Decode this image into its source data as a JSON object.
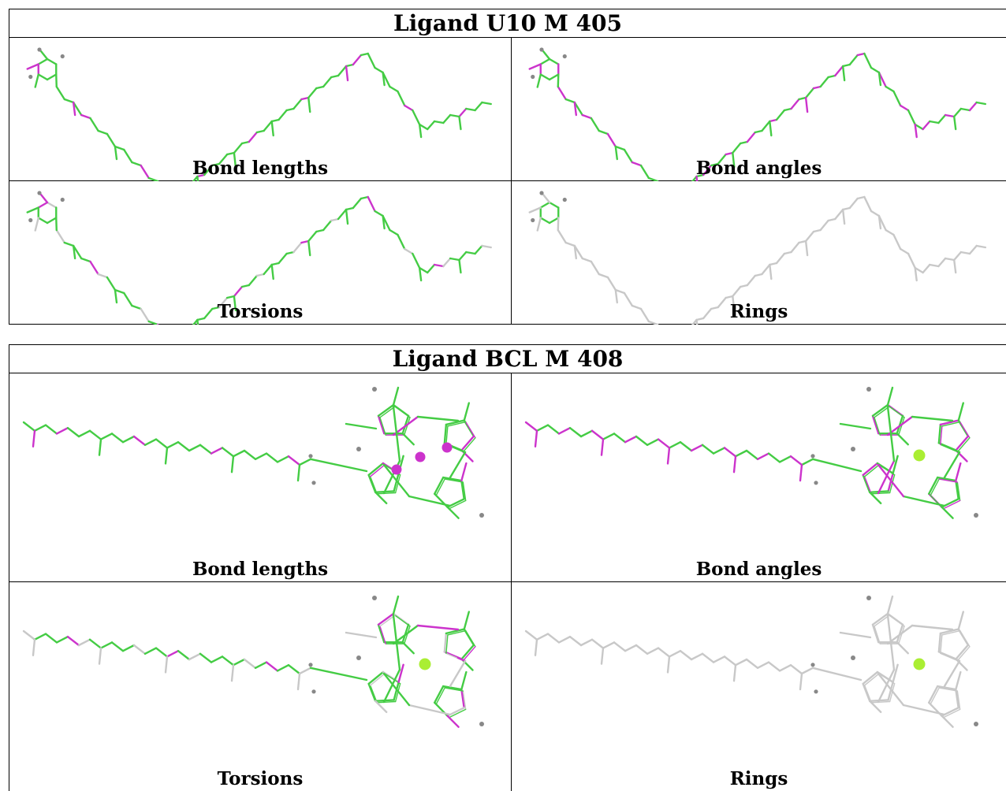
{
  "tables": [
    {
      "title": "Ligand U10 M 405",
      "panels": [
        {
          "caption": "Bond lengths",
          "icon": "u10-bond-lengths-structure"
        },
        {
          "caption": "Bond angles",
          "icon": "u10-bond-angles-structure"
        },
        {
          "caption": "Torsions",
          "icon": "u10-torsions-structure"
        },
        {
          "caption": "Rings",
          "icon": "u10-rings-structure"
        }
      ]
    },
    {
      "title": "Ligand BCL M 408",
      "panels": [
        {
          "caption": "Bond lengths",
          "icon": "bcl-bond-lengths-structure"
        },
        {
          "caption": "Bond angles",
          "icon": "bcl-bond-angles-structure"
        },
        {
          "caption": "Torsions",
          "icon": "bcl-torsions-structure"
        },
        {
          "caption": "Rings",
          "icon": "bcl-rings-structure"
        }
      ]
    }
  ],
  "colors": {
    "green": "#44cc44",
    "magenta": "#cc33cc",
    "grey": "#c8c8c8",
    "dark_grey": "#888888",
    "mg_green": "#aaee33"
  }
}
